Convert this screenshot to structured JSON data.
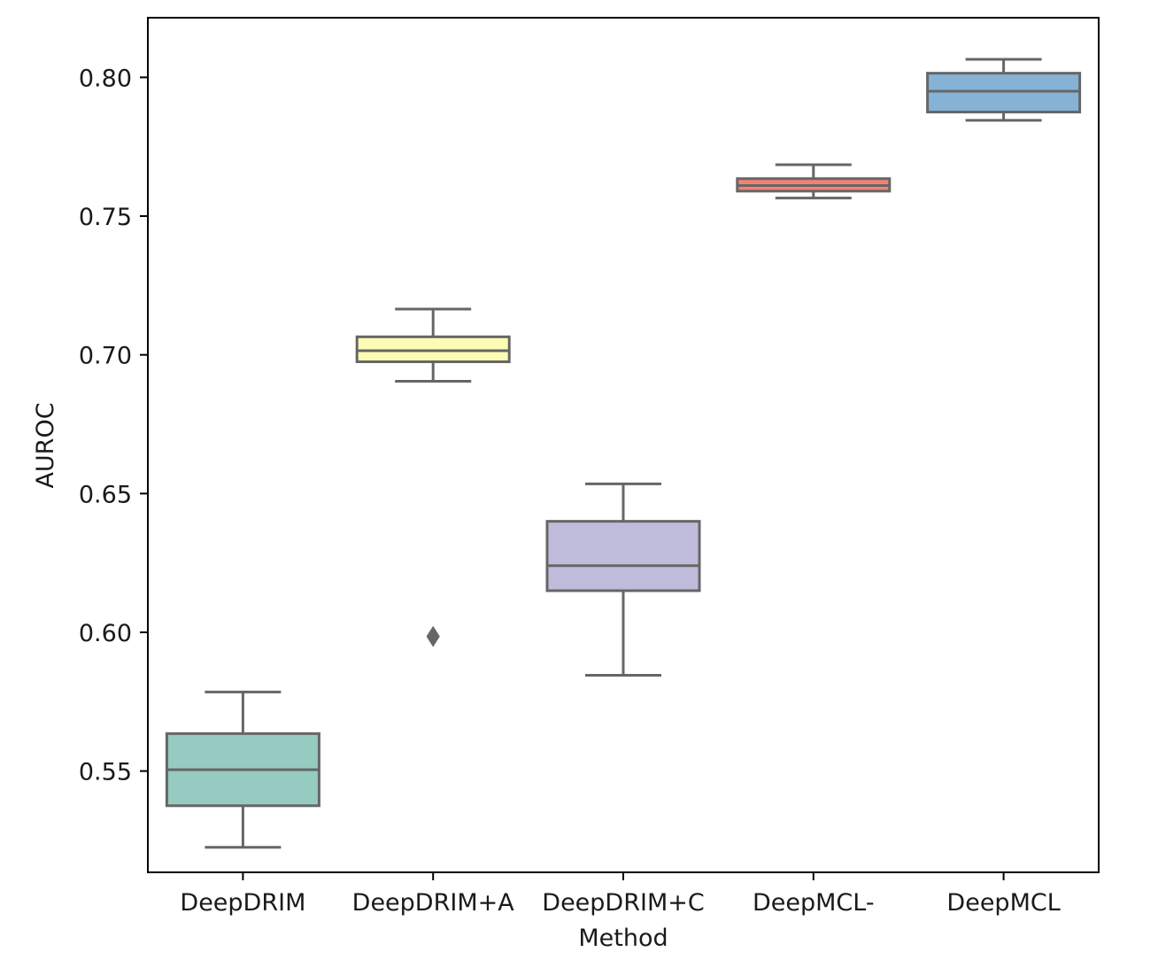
{
  "chart_data": {
    "type": "box",
    "title": "",
    "xlabel": "Method",
    "ylabel": "AUROC",
    "ylim": [
      0.5135,
      0.8215
    ],
    "y_ticks": [
      "0.55",
      "0.60",
      "0.65",
      "0.70",
      "0.75",
      "0.80"
    ],
    "grid": false,
    "legend": "none",
    "line_color": "#666666",
    "series": [
      {
        "category": "DeepDRIM",
        "color": "#95cbc0",
        "whisker_low": 0.5225,
        "q1": 0.5375,
        "median": 0.5505,
        "q3": 0.5635,
        "whisker_high": 0.5785,
        "outliers": []
      },
      {
        "category": "DeepDRIM+A",
        "color": "#fdfcb4",
        "whisker_low": 0.6905,
        "q1": 0.6975,
        "median": 0.7015,
        "q3": 0.7065,
        "whisker_high": 0.7165,
        "outliers": [
          0.5985
        ]
      },
      {
        "category": "DeepDRIM+C",
        "color": "#bfbcdb",
        "whisker_low": 0.5845,
        "q1": 0.615,
        "median": 0.624,
        "q3": 0.64,
        "whisker_high": 0.6535,
        "outliers": []
      },
      {
        "category": "DeepMCL-",
        "color": "#f38275",
        "whisker_low": 0.7565,
        "q1": 0.759,
        "median": 0.761,
        "q3": 0.7635,
        "whisker_high": 0.7685,
        "outliers": []
      },
      {
        "category": "DeepMCL",
        "color": "#86b2d5",
        "whisker_low": 0.7845,
        "q1": 0.7875,
        "median": 0.795,
        "q3": 0.8015,
        "whisker_high": 0.8065,
        "outliers": []
      }
    ]
  }
}
